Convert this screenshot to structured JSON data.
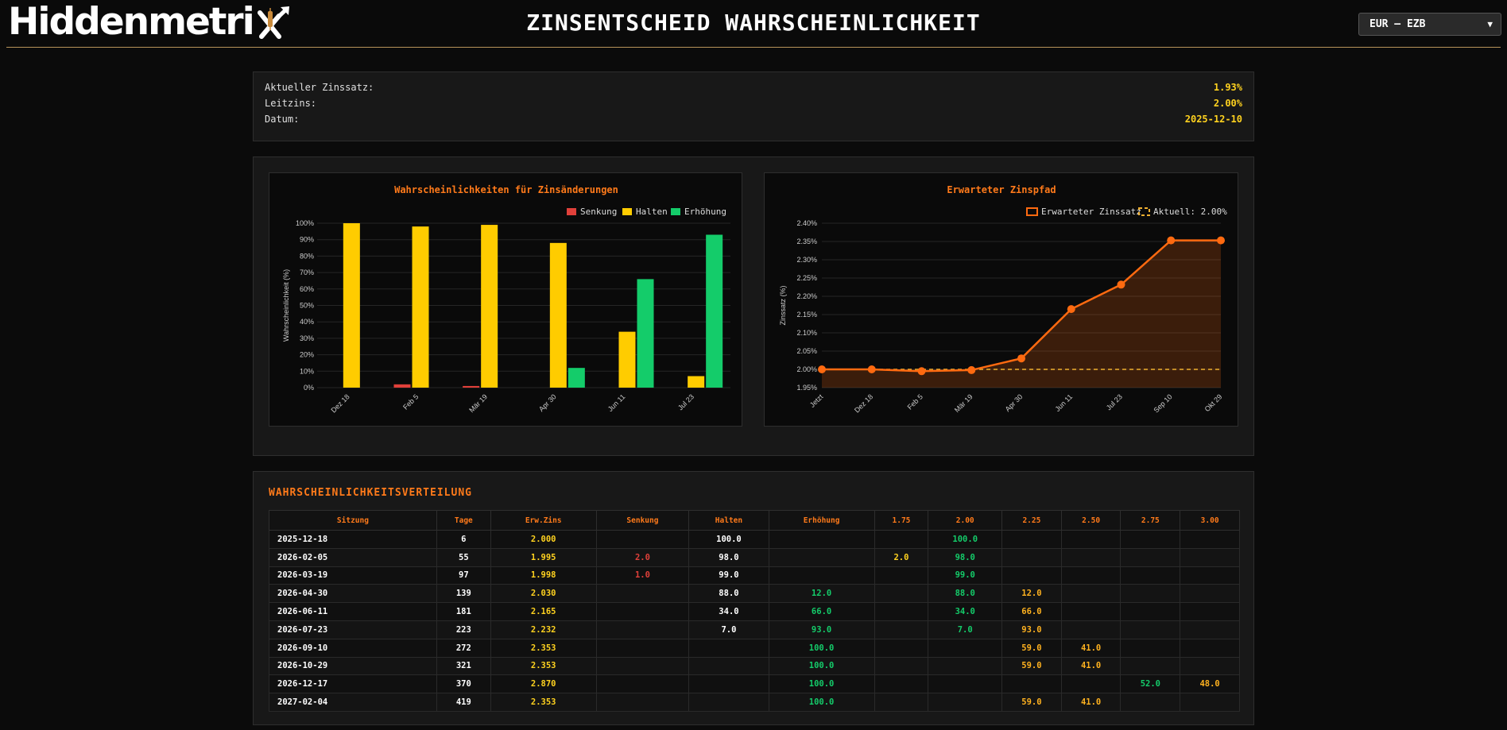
{
  "header": {
    "logo_text": "Hiddenmetri",
    "title": "ZINSENTSCHEID WAHRSCHEINLICHKEIT",
    "market_selected": "EUR – EZB"
  },
  "info": {
    "rows": [
      {
        "label": "Aktueller Zinssatz:",
        "value": "1.93%"
      },
      {
        "label": "Leitzins:",
        "value": "2.00%"
      },
      {
        "label": "Datum:",
        "value": "2025-12-10"
      }
    ]
  },
  "colors": {
    "senkung": "#e0403a",
    "halten": "#ffcc00",
    "erhoehung": "#14cc6a",
    "accent": "#ff7a1a",
    "path": "#ff6a10",
    "current": "#f0b030"
  },
  "chart_data": [
    {
      "type": "bar",
      "title": "Wahrscheinlichkeiten für Zinsänderungen",
      "ylabel": "Wahrscheinlichkeit (%)",
      "ylim": [
        0,
        100
      ],
      "yticks": [
        "0%",
        "10%",
        "20%",
        "30%",
        "40%",
        "50%",
        "60%",
        "70%",
        "80%",
        "90%",
        "100%"
      ],
      "categories": [
        "Dez 18",
        "Feb 5",
        "Mär 19",
        "Apr 30",
        "Jun 11",
        "Jul 23"
      ],
      "legend_position": "top-right",
      "series": [
        {
          "name": "Senkung",
          "values": [
            0,
            2,
            1,
            0,
            0,
            0
          ]
        },
        {
          "name": "Halten",
          "values": [
            100,
            98,
            99,
            88,
            34,
            7
          ]
        },
        {
          "name": "Erhöhung",
          "values": [
            0,
            0,
            0,
            12,
            66,
            93
          ]
        }
      ]
    },
    {
      "type": "line",
      "title": "Erwarteter Zinspfad",
      "ylabel": "Zinssatz (%)",
      "ylim": [
        1.95,
        2.4
      ],
      "yticks": [
        "1.95%",
        "2.00%",
        "2.05%",
        "2.10%",
        "2.15%",
        "2.20%",
        "2.25%",
        "2.30%",
        "2.35%",
        "2.40%"
      ],
      "categories": [
        "Jetzt",
        "Dez 18",
        "Feb 5",
        "Mär 19",
        "Apr 30",
        "Jun 11",
        "Jul 23",
        "Sep 10",
        "Okt 29"
      ],
      "legend_position": "top-right",
      "series": [
        {
          "name": "Erwarteter Zinssatz",
          "values": [
            2.0,
            2.0,
            1.995,
            1.998,
            2.03,
            2.165,
            2.232,
            2.353,
            2.353
          ]
        },
        {
          "name": "Aktuell: 2.00%",
          "values": [
            2.0,
            2.0,
            2.0,
            2.0,
            2.0,
            2.0,
            2.0,
            2.0,
            2.0
          ]
        }
      ]
    }
  ],
  "table": {
    "title": "WAHRSCHEINLICHKEITSVERTEILUNG",
    "columns": [
      "Sitzung",
      "Tage",
      "Erw.Zins",
      "Senkung",
      "Halten",
      "Erhöhung",
      "1.75",
      "2.00",
      "2.25",
      "2.50",
      "2.75",
      "3.00"
    ],
    "rows": [
      [
        "2025-12-18",
        "6",
        "2.000",
        "",
        "100.0",
        "",
        "",
        "100.0",
        "",
        "",
        "",
        ""
      ],
      [
        "2026-02-05",
        "55",
        "1.995",
        "2.0",
        "98.0",
        "",
        "2.0",
        "98.0",
        "",
        "",
        "",
        ""
      ],
      [
        "2026-03-19",
        "97",
        "1.998",
        "1.0",
        "99.0",
        "",
        "",
        "99.0",
        "",
        "",
        "",
        ""
      ],
      [
        "2026-04-30",
        "139",
        "2.030",
        "",
        "88.0",
        "12.0",
        "",
        "88.0",
        "12.0",
        "",
        "",
        ""
      ],
      [
        "2026-06-11",
        "181",
        "2.165",
        "",
        "34.0",
        "66.0",
        "",
        "34.0",
        "66.0",
        "",
        "",
        ""
      ],
      [
        "2026-07-23",
        "223",
        "2.232",
        "",
        "7.0",
        "93.0",
        "",
        "7.0",
        "93.0",
        "",
        "",
        ""
      ],
      [
        "2026-09-10",
        "272",
        "2.353",
        "",
        "",
        "100.0",
        "",
        "",
        "59.0",
        "41.0",
        "",
        ""
      ],
      [
        "2026-10-29",
        "321",
        "2.353",
        "",
        "",
        "100.0",
        "",
        "",
        "59.0",
        "41.0",
        "",
        ""
      ],
      [
        "2026-12-17",
        "370",
        "2.870",
        "",
        "",
        "100.0",
        "",
        "",
        "",
        "",
        "52.0",
        "48.0"
      ],
      [
        "2027-02-04",
        "419",
        "2.353",
        "",
        "",
        "100.0",
        "",
        "",
        "59.0",
        "41.0",
        "",
        ""
      ]
    ],
    "cell_colors": [
      [
        "date",
        "white",
        "yellow",
        "red",
        "white",
        "green",
        "yellow",
        "green",
        "orange",
        "orange",
        "green",
        "orange"
      ]
    ]
  }
}
